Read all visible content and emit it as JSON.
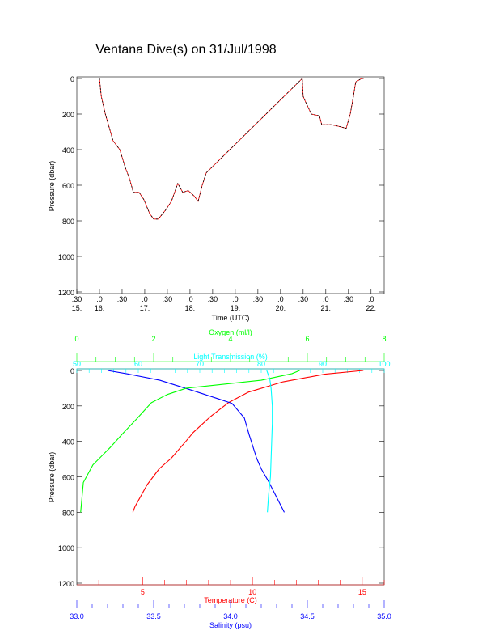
{
  "chart_data": [
    {
      "type": "line",
      "title": "Ventana Dive(s) on 31/Jul/1998",
      "xlabel": "Time (UTC)",
      "ylabel": "Pressure (dbar)",
      "xlim": [
        15.5,
        22.29
      ],
      "ylim": [
        1200,
        0
      ],
      "yticks": [
        0,
        200,
        400,
        600,
        800,
        1000,
        1200
      ],
      "xticks": [
        {
          "v": 15.5,
          "l1": ":30",
          "l2": "15:"
        },
        {
          "v": 16,
          "l1": ":0",
          "l2": "16:"
        },
        {
          "v": 16.5,
          "l1": ":30",
          "l2": ""
        },
        {
          "v": 17,
          "l1": ":0",
          "l2": "17:"
        },
        {
          "v": 17.5,
          "l1": ":30",
          "l2": ""
        },
        {
          "v": 18,
          "l1": ":0",
          "l2": "18:"
        },
        {
          "v": 18.5,
          "l1": ":30",
          "l2": ""
        },
        {
          "v": 19,
          "l1": ":0",
          "l2": "19:"
        },
        {
          "v": 19.5,
          "l1": ":30",
          "l2": ""
        },
        {
          "v": 20,
          "l1": ":0",
          "l2": "20:"
        },
        {
          "v": 20.5,
          "l1": ":30",
          "l2": ""
        },
        {
          "v": 21,
          "l1": ":0",
          "l2": "21:"
        },
        {
          "v": 21.5,
          "l1": ":30",
          "l2": ""
        },
        {
          "v": 22,
          "l1": ":0",
          "l2": "22:"
        }
      ],
      "series": [
        {
          "name": "dive",
          "color": "#000000",
          "x": [
            16.0,
            16.04,
            16.13,
            16.3,
            16.45,
            16.57,
            16.66,
            16.75,
            16.875,
            16.98,
            17.11,
            17.2,
            17.3,
            17.46,
            17.59,
            17.73,
            17.84,
            17.96,
            18.09,
            18.18,
            18.27,
            18.36,
            20.48,
            20.5,
            20.55,
            20.68,
            20.86,
            20.91,
            21.13,
            21.3,
            21.45,
            21.54,
            21.61,
            21.66,
            21.79,
            21.84
          ],
          "y": [
            0,
            100,
            200,
            350,
            400,
            500,
            560,
            640,
            640,
            680,
            760,
            790,
            790,
            740,
            690,
            590,
            640,
            630,
            660,
            690,
            600,
            530,
            0,
            100,
            130,
            200,
            210,
            260,
            260,
            270,
            280,
            200,
            100,
            20,
            0,
            0
          ]
        }
      ]
    },
    {
      "type": "line",
      "ylabel": "Pressure (dbar)",
      "ylim": [
        1200,
        0
      ],
      "yticks": [
        0,
        200,
        400,
        600,
        800,
        1000,
        1200
      ],
      "axes": {
        "oxygen": {
          "label": "Oxygen (ml/l)",
          "range": [
            0,
            8
          ],
          "ticks": [
            0,
            2,
            4,
            6,
            8
          ],
          "color": "#00ff00"
        },
        "light": {
          "label": "Light Transmission (%)",
          "range": [
            50,
            100
          ],
          "ticks": [
            50,
            60,
            70,
            80,
            90,
            100
          ],
          "color": "#00ffff"
        },
        "temperature": {
          "label": "Temperature (C)",
          "range": [
            2,
            16
          ],
          "ticks": [
            5,
            10,
            15
          ],
          "color": "#ff0000"
        },
        "salinity": {
          "label": "Salinity (psu)",
          "range": [
            33,
            35
          ],
          "ticks": [
            "33.0",
            "33.5",
            "34.0",
            "34.5",
            "35.0"
          ],
          "color": "#0000ff"
        }
      },
      "series": [
        {
          "name": "Temperature",
          "axis": "temperature",
          "color": "#ff0000",
          "x": [
            15.05,
            13.3,
            11.4,
            9.8,
            8.9,
            8.1,
            7.3,
            7.0,
            6.3,
            5.75,
            5.2,
            4.65,
            4.55
          ],
          "p": [
            0,
            21,
            64,
            123,
            182,
            259,
            350,
            395,
            495,
            555,
            645,
            768,
            800
          ]
        },
        {
          "name": "Salinity",
          "axis": "salinity",
          "color": "#0000ff",
          "x": [
            33.2,
            33.34,
            33.54,
            33.76,
            33.92,
            34.01,
            34.09,
            34.12,
            34.17,
            34.2,
            34.25,
            34.35
          ],
          "p": [
            0,
            21,
            55,
            115,
            160,
            186,
            268,
            359,
            495,
            555,
            630,
            800
          ]
        },
        {
          "name": "Oxygen",
          "axis": "oxygen",
          "color": "#00ff00",
          "x": [
            5.8,
            5.6,
            4.8,
            2.85,
            2.35,
            1.94,
            1.58,
            1.22,
            0.88,
            0.42,
            0.17,
            0.1
          ],
          "p": [
            0,
            18,
            55,
            100,
            136,
            182,
            268,
            350,
            432,
            532,
            632,
            800
          ]
        },
        {
          "name": "Light Transmission",
          "axis": "light",
          "color": "#00ffff",
          "x": [
            80.9,
            81.4,
            81.6,
            81.8,
            81.8,
            81.7,
            81.5,
            81.2,
            81.0
          ],
          "p": [
            0,
            50,
            100,
            200,
            300,
            400,
            600,
            700,
            800
          ]
        }
      ]
    }
  ]
}
